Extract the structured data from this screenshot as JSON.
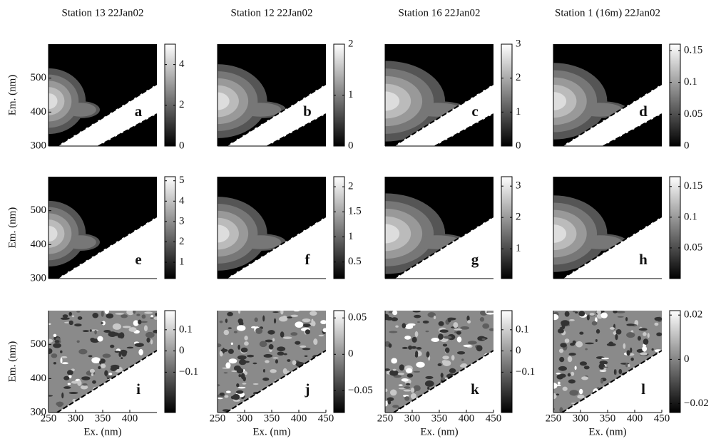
{
  "chart_data": [
    {
      "type": "contour",
      "title": "Station 13 22Jan02",
      "label": "a",
      "xlim": [
        250,
        450
      ],
      "ylim": [
        300,
        600
      ],
      "yticks": [
        300,
        400,
        500
      ],
      "ylabel": "Em. (nm)",
      "clim": [
        0,
        5
      ],
      "cticks": [
        0,
        2,
        4
      ]
    },
    {
      "type": "contour",
      "title": "Station 12 22Jan02",
      "label": "b",
      "xlim": [
        250,
        450
      ],
      "ylim": [
        300,
        600
      ],
      "clim": [
        0,
        2
      ],
      "cticks": [
        0,
        1,
        2
      ]
    },
    {
      "type": "contour",
      "title": "Station 16 22Jan02",
      "label": "c",
      "xlim": [
        250,
        450
      ],
      "ylim": [
        300,
        600
      ],
      "clim": [
        0,
        3
      ],
      "cticks": [
        0,
        1,
        2,
        3
      ]
    },
    {
      "type": "contour",
      "title": "Station 1 (16m) 22Jan02",
      "label": "d",
      "xlim": [
        250,
        450
      ],
      "ylim": [
        300,
        600
      ],
      "clim": [
        0,
        0.16
      ],
      "cticks": [
        0,
        0.05,
        0.1,
        0.15
      ]
    },
    {
      "type": "contour",
      "label": "e",
      "xlim": [
        250,
        450
      ],
      "ylim": [
        300,
        600
      ],
      "yticks": [
        300,
        400,
        500
      ],
      "ylabel": "Em. (nm)",
      "clim": [
        0.2,
        5.2
      ],
      "cticks": [
        1,
        2,
        3,
        4,
        5
      ]
    },
    {
      "type": "contour",
      "label": "f",
      "xlim": [
        250,
        450
      ],
      "ylim": [
        300,
        600
      ],
      "clim": [
        0.17,
        2.2
      ],
      "cticks": [
        0.5,
        1,
        1.5,
        2
      ]
    },
    {
      "type": "contour",
      "label": "g",
      "xlim": [
        250,
        450
      ],
      "ylim": [
        300,
        600
      ],
      "clim": [
        0.05,
        3.3
      ],
      "cticks": [
        1,
        2,
        3
      ]
    },
    {
      "type": "contour",
      "label": "h",
      "xlim": [
        250,
        450
      ],
      "ylim": [
        300,
        600
      ],
      "clim": [
        0,
        0.166
      ],
      "cticks": [
        0.05,
        0.1,
        0.15
      ]
    },
    {
      "type": "contour",
      "label": "i",
      "xlim": [
        250,
        450
      ],
      "ylim": [
        300,
        600
      ],
      "xticks": [
        250,
        300,
        350,
        400
      ],
      "xlabel": "Ex. (nm)",
      "yticks": [
        300,
        400,
        500
      ],
      "ylabel": "Em. (nm)",
      "clim": [
        -0.29,
        0.19
      ],
      "cticks": [
        {
          "value": -0.1,
          "label": "−0.1"
        },
        0,
        0.1
      ]
    },
    {
      "type": "contour",
      "label": "j",
      "xlim": [
        250,
        450
      ],
      "ylim": [
        300,
        600
      ],
      "xticks": [
        250,
        300,
        350,
        400,
        450
      ],
      "xlabel": "Ex. (nm)",
      "clim": [
        -0.08,
        0.06
      ],
      "cticks": [
        {
          "value": -0.05,
          "label": "−0.05"
        },
        0,
        0.05
      ]
    },
    {
      "type": "contour",
      "label": "k",
      "xlim": [
        250,
        450
      ],
      "ylim": [
        300,
        600
      ],
      "xticks": [
        250,
        300,
        350,
        400,
        450
      ],
      "xlabel": "Ex. (nm)",
      "clim": [
        -0.29,
        0.19
      ],
      "cticks": [
        {
          "value": -0.1,
          "label": "−0.1"
        },
        0,
        0.1
      ]
    },
    {
      "type": "contour",
      "label": "l",
      "xlim": [
        250,
        450
      ],
      "ylim": [
        300,
        600
      ],
      "xticks": [
        250,
        300,
        350,
        400,
        450
      ],
      "xlabel": "Ex. (nm)",
      "clim": [
        -0.024,
        0.022
      ],
      "cticks": [
        {
          "value": -0.02,
          "label": "−0.02"
        },
        0,
        0.02
      ]
    }
  ]
}
